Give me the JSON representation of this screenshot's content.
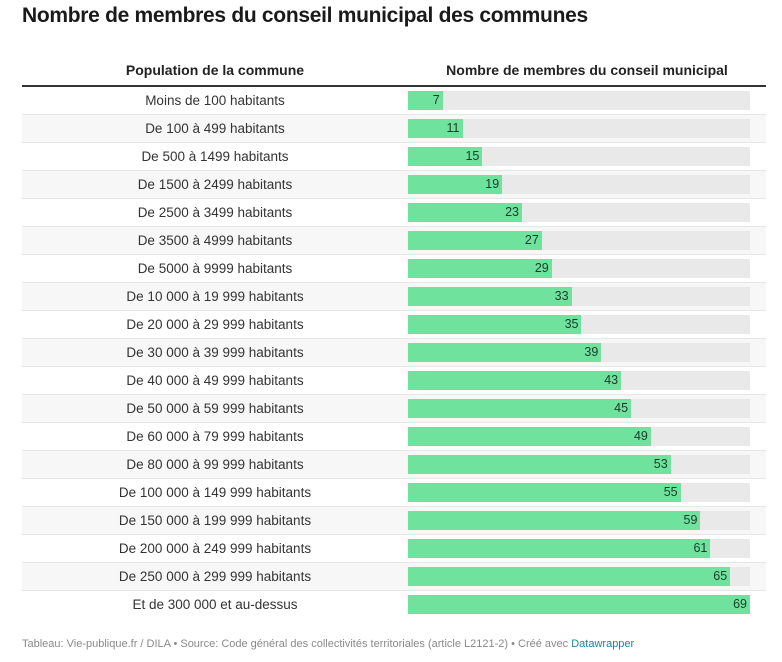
{
  "title": "Nombre de membres du conseil municipal des communes",
  "table": {
    "headers": [
      "Population de la commune",
      "Nombre de membres du conseil municipal"
    ]
  },
  "colors": {
    "bar_fill": "#6fe39d",
    "bar_track": "#e9e9e9",
    "row_alt": "#f7f7f7",
    "link": "#1d81a2"
  },
  "chart_data": {
    "type": "bar",
    "orientation": "horizontal",
    "title": "Nombre de membres du conseil municipal des communes",
    "xlabel": "Nombre de membres du conseil municipal",
    "ylabel": "Population de la commune",
    "xlim": [
      0,
      69
    ],
    "categories": [
      "Moins de 100 habitants",
      "De 100 à 499 habitants",
      "De 500 à 1499 habitants",
      "De 1500 à 2499 habitants",
      "De 2500 à 3499 habitants",
      "De 3500 à 4999 habitants",
      "De 5000 à 9999 habitants",
      "De 10 000 à 19 999 habitants",
      "De 20 000 à 29 999 habitants",
      "De 30 000 à 39 999 habitants",
      "De 40 000 à 49 999 habitants",
      "De 50 000 à 59 999 habitants",
      "De 60 000 à 79 999 habitants",
      "De 80 000 à 99 999 habitants",
      "De 100 000 à 149 999 habitants",
      "De 150 000 à 199 999 habitants",
      "De 200 000 à 249 999 habitants",
      "De 250 000 à 299 999 habitants",
      "Et de 300 000 et au-dessus"
    ],
    "values": [
      7,
      11,
      15,
      19,
      23,
      27,
      29,
      33,
      35,
      39,
      43,
      45,
      49,
      53,
      55,
      59,
      61,
      65,
      69
    ]
  },
  "footer": {
    "text": "Tableau: Vie-publique.fr / DILA • Source: Code général des collectivités territoriales (article L2121-2) • Créé avec ",
    "link_label": "Datawrapper"
  }
}
